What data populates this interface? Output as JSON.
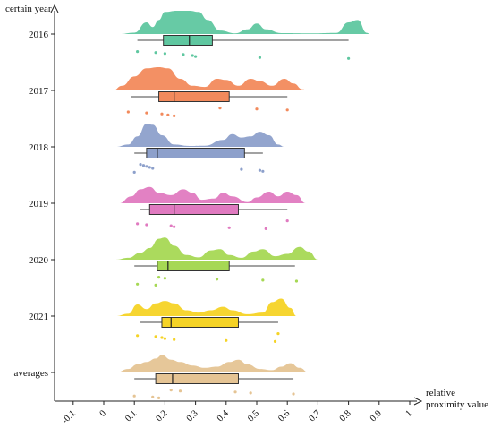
{
  "chart_data": {
    "type": "raincloud",
    "ylabel": "certain year",
    "xlabel_line1": "relative",
    "xlabel_line2": "proximity value",
    "xlim": [
      -0.15,
      1.0
    ],
    "x_ticks": [
      "-0.1",
      "0",
      "0.1",
      "0.2",
      "0.3",
      "0.4",
      "0.5",
      "0.6",
      "0.7",
      "0.8",
      "0.9",
      "1"
    ],
    "x_tick_values": [
      -0.1,
      0,
      0.1,
      0.2,
      0.3,
      0.4,
      0.5,
      0.6,
      0.7,
      0.8,
      0.9,
      1.0
    ],
    "series": [
      {
        "name": "2016",
        "color": "#5fc7a0",
        "box": {
          "min": 0.11,
          "q1": 0.195,
          "median": 0.28,
          "q3": 0.355,
          "max": 0.8
        },
        "points": [
          0.11,
          0.17,
          0.2,
          0.26,
          0.29,
          0.3,
          0.51,
          0.8
        ],
        "density": [
          [
            0.05,
            0
          ],
          [
            0.1,
            0.06
          ],
          [
            0.14,
            0.5
          ],
          [
            0.16,
            0.3
          ],
          [
            0.18,
            0.6
          ],
          [
            0.2,
            0.95
          ],
          [
            0.24,
            1.0
          ],
          [
            0.28,
            1.0
          ],
          [
            0.31,
            0.95
          ],
          [
            0.34,
            0.6
          ],
          [
            0.38,
            0.15
          ],
          [
            0.43,
            0.03
          ],
          [
            0.47,
            0.2
          ],
          [
            0.5,
            0.45
          ],
          [
            0.53,
            0.2
          ],
          [
            0.58,
            0.04
          ],
          [
            0.68,
            0.03
          ],
          [
            0.76,
            0.05
          ],
          [
            0.8,
            0.5
          ],
          [
            0.83,
            0.6
          ],
          [
            0.86,
            0.05
          ],
          [
            0.87,
            0
          ]
        ]
      },
      {
        "name": "2017",
        "color": "#f28a5c",
        "box": {
          "min": 0.09,
          "q1": 0.18,
          "median": 0.23,
          "q3": 0.41,
          "max": 0.6
        },
        "points": [
          0.08,
          0.14,
          0.19,
          0.21,
          0.23,
          0.38,
          0.5,
          0.6
        ],
        "density": [
          [
            0.03,
            0
          ],
          [
            0.06,
            0.2
          ],
          [
            0.1,
            0.6
          ],
          [
            0.14,
            0.95
          ],
          [
            0.18,
            1.0
          ],
          [
            0.21,
            0.95
          ],
          [
            0.25,
            0.5
          ],
          [
            0.29,
            0.2
          ],
          [
            0.33,
            0.15
          ],
          [
            0.37,
            0.5
          ],
          [
            0.4,
            0.45
          ],
          [
            0.44,
            0.2
          ],
          [
            0.48,
            0.5
          ],
          [
            0.51,
            0.4
          ],
          [
            0.55,
            0.2
          ],
          [
            0.59,
            0.5
          ],
          [
            0.62,
            0.3
          ],
          [
            0.65,
            0.05
          ],
          [
            0.67,
            0
          ]
        ]
      },
      {
        "name": "2018",
        "color": "#8da0cb",
        "box": {
          "min": 0.1,
          "q1": 0.14,
          "median": 0.175,
          "q3": 0.46,
          "max": 0.52
        },
        "points": [
          0.1,
          0.12,
          0.13,
          0.14,
          0.15,
          0.16,
          0.45,
          0.51,
          0.52
        ],
        "density": [
          [
            0.04,
            0
          ],
          [
            0.08,
            0.1
          ],
          [
            0.11,
            0.45
          ],
          [
            0.14,
            1.0
          ],
          [
            0.16,
            0.95
          ],
          [
            0.19,
            0.5
          ],
          [
            0.23,
            0.1
          ],
          [
            0.28,
            0.04
          ],
          [
            0.33,
            0.05
          ],
          [
            0.39,
            0.3
          ],
          [
            0.42,
            0.55
          ],
          [
            0.45,
            0.4
          ],
          [
            0.48,
            0.45
          ],
          [
            0.51,
            0.65
          ],
          [
            0.54,
            0.5
          ],
          [
            0.57,
            0.1
          ],
          [
            0.59,
            0
          ]
        ]
      },
      {
        "name": "2019",
        "color": "#e07ac0",
        "box": {
          "min": 0.12,
          "q1": 0.15,
          "median": 0.23,
          "q3": 0.44,
          "max": 0.6
        },
        "points": [
          0.11,
          0.14,
          0.22,
          0.23,
          0.41,
          0.53,
          0.6
        ],
        "density": [
          [
            0.05,
            0
          ],
          [
            0.09,
            0.3
          ],
          [
            0.12,
            0.6
          ],
          [
            0.15,
            0.7
          ],
          [
            0.18,
            0.45
          ],
          [
            0.22,
            0.35
          ],
          [
            0.26,
            0.6
          ],
          [
            0.29,
            0.45
          ],
          [
            0.32,
            0.15
          ],
          [
            0.36,
            0.2
          ],
          [
            0.39,
            0.45
          ],
          [
            0.42,
            0.3
          ],
          [
            0.47,
            0.05
          ],
          [
            0.5,
            0.25
          ],
          [
            0.54,
            0.5
          ],
          [
            0.57,
            0.3
          ],
          [
            0.6,
            0.5
          ],
          [
            0.63,
            0.35
          ],
          [
            0.66,
            0
          ]
        ]
      },
      {
        "name": "2020",
        "color": "#a6d854",
        "box": {
          "min": 0.1,
          "q1": 0.175,
          "median": 0.21,
          "q3": 0.41,
          "max": 0.625
        },
        "points": [
          0.11,
          0.17,
          0.18,
          0.2,
          0.37,
          0.52,
          0.63
        ],
        "density": [
          [
            0.04,
            0
          ],
          [
            0.08,
            0.08
          ],
          [
            0.12,
            0.3
          ],
          [
            0.15,
            0.5
          ],
          [
            0.18,
            0.9
          ],
          [
            0.2,
            0.95
          ],
          [
            0.23,
            0.6
          ],
          [
            0.27,
            0.2
          ],
          [
            0.31,
            0.1
          ],
          [
            0.35,
            0.4
          ],
          [
            0.38,
            0.45
          ],
          [
            0.41,
            0.2
          ],
          [
            0.45,
            0.08
          ],
          [
            0.49,
            0.35
          ],
          [
            0.52,
            0.45
          ],
          [
            0.56,
            0.15
          ],
          [
            0.6,
            0.25
          ],
          [
            0.64,
            0.55
          ],
          [
            0.67,
            0.35
          ],
          [
            0.7,
            0
          ]
        ]
      },
      {
        "name": "2021",
        "color": "#f5d326",
        "box": {
          "min": 0.12,
          "q1": 0.19,
          "median": 0.22,
          "q3": 0.44,
          "max": 0.57
        },
        "points": [
          0.11,
          0.17,
          0.19,
          0.2,
          0.23,
          0.4,
          0.56,
          0.57
        ],
        "density": [
          [
            0.04,
            0
          ],
          [
            0.08,
            0.1
          ],
          [
            0.11,
            0.5
          ],
          [
            0.14,
            0.3
          ],
          [
            0.17,
            0.55
          ],
          [
            0.2,
            0.65
          ],
          [
            0.23,
            0.55
          ],
          [
            0.27,
            0.25
          ],
          [
            0.31,
            0.15
          ],
          [
            0.35,
            0.25
          ],
          [
            0.39,
            0.4
          ],
          [
            0.42,
            0.25
          ],
          [
            0.47,
            0.08
          ],
          [
            0.52,
            0.15
          ],
          [
            0.55,
            0.6
          ],
          [
            0.58,
            0.75
          ],
          [
            0.61,
            0.35
          ],
          [
            0.63,
            0
          ]
        ]
      },
      {
        "name": "averages",
        "color": "#e5c494",
        "box": {
          "min": 0.1,
          "q1": 0.17,
          "median": 0.225,
          "q3": 0.44,
          "max": 0.62
        },
        "points": [
          0.1,
          0.16,
          0.18,
          0.22,
          0.25,
          0.43,
          0.48,
          0.62
        ],
        "density": [
          [
            0.04,
            0
          ],
          [
            0.08,
            0.15
          ],
          [
            0.11,
            0.35
          ],
          [
            0.14,
            0.45
          ],
          [
            0.17,
            0.6
          ],
          [
            0.19,
            0.75
          ],
          [
            0.22,
            0.55
          ],
          [
            0.25,
            0.45
          ],
          [
            0.29,
            0.3
          ],
          [
            0.33,
            0.2
          ],
          [
            0.37,
            0.25
          ],
          [
            0.41,
            0.45
          ],
          [
            0.44,
            0.55
          ],
          [
            0.47,
            0.35
          ],
          [
            0.51,
            0.15
          ],
          [
            0.55,
            0.1
          ],
          [
            0.58,
            0.25
          ],
          [
            0.61,
            0.4
          ],
          [
            0.64,
            0.2
          ],
          [
            0.67,
            0
          ]
        ]
      }
    ]
  }
}
